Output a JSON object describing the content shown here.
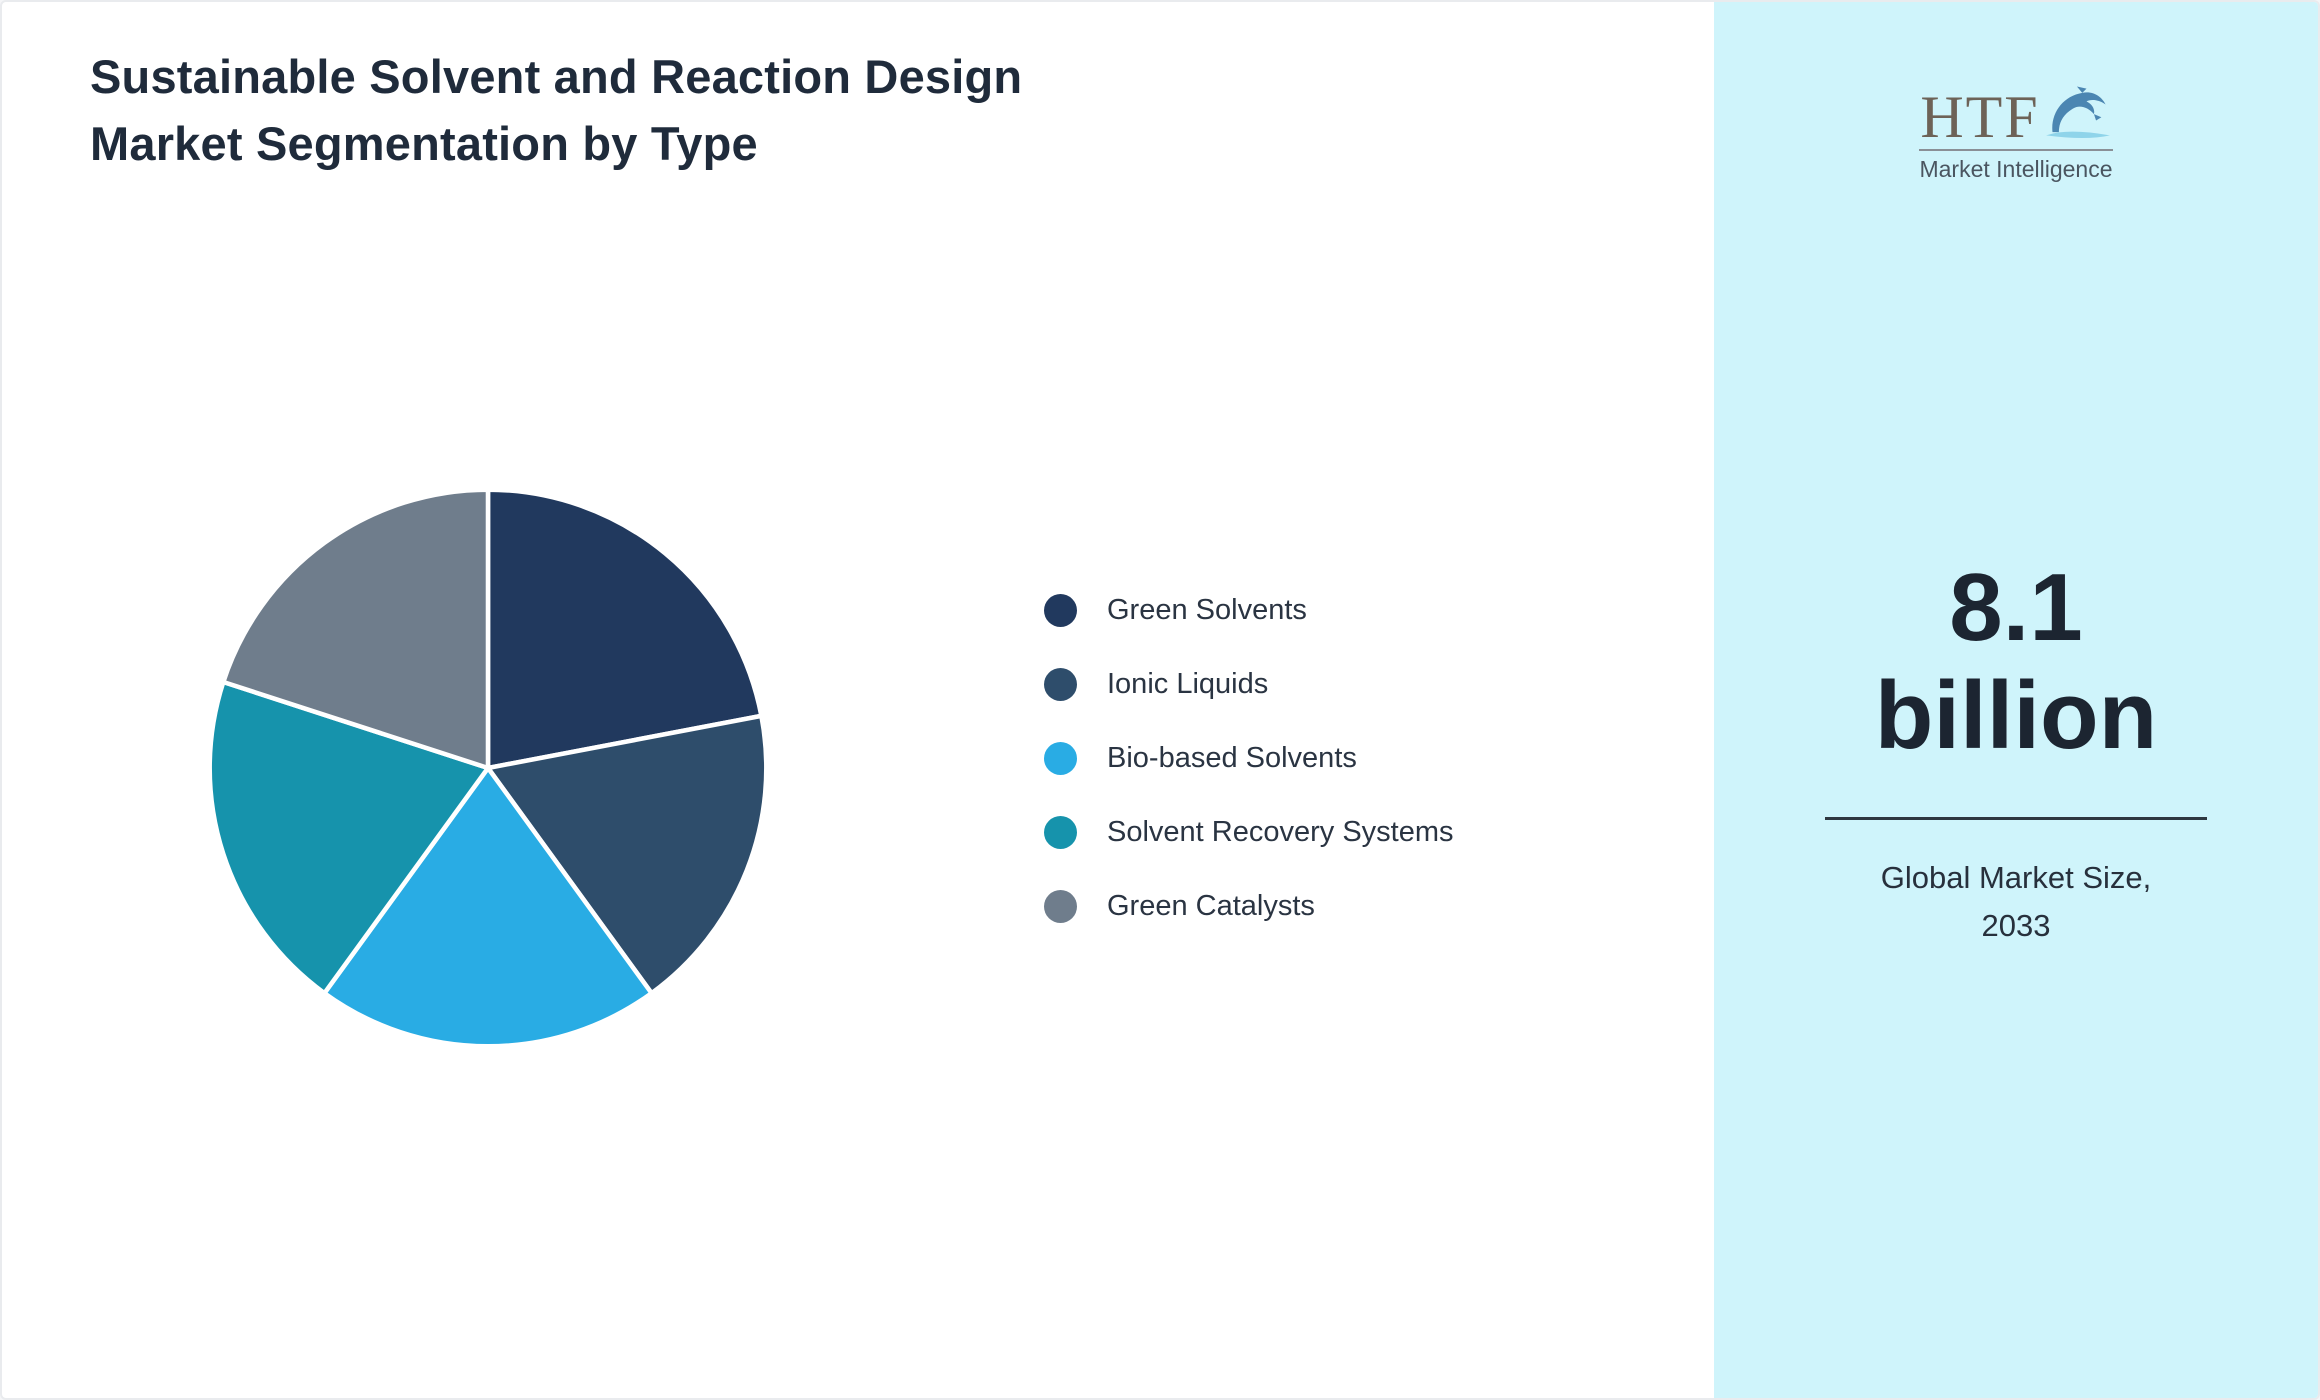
{
  "title": "Sustainable Solvent and Reaction Design Market Segmentation by Type",
  "chart_data": {
    "type": "pie",
    "title": "Sustainable Solvent and Reaction Design Market Segmentation by Type",
    "categories": [
      "Green Solvents",
      "Ionic Liquids",
      "Bio-based Solvents",
      "Solvent Recovery Systems",
      "Green Catalysts"
    ],
    "values": [
      22,
      18,
      20,
      20,
      20
    ],
    "colors": [
      "#21395e",
      "#2e4d6b",
      "#29ace4",
      "#1693ac",
      "#6f7d8c"
    ],
    "start_angle_deg": -90,
    "direction": "clockwise",
    "legend_position": "right",
    "slice_border_color": "#ffffff"
  },
  "sidebar": {
    "panel_bg": "#cff4fb",
    "logo": {
      "text": "HTF",
      "subtext": "Market Intelligence",
      "dolphin_icon": "dolphin-icon"
    },
    "value_line1": "8.1",
    "value_line2": "billion",
    "market_size_label": "Global Market Size, 2033"
  }
}
